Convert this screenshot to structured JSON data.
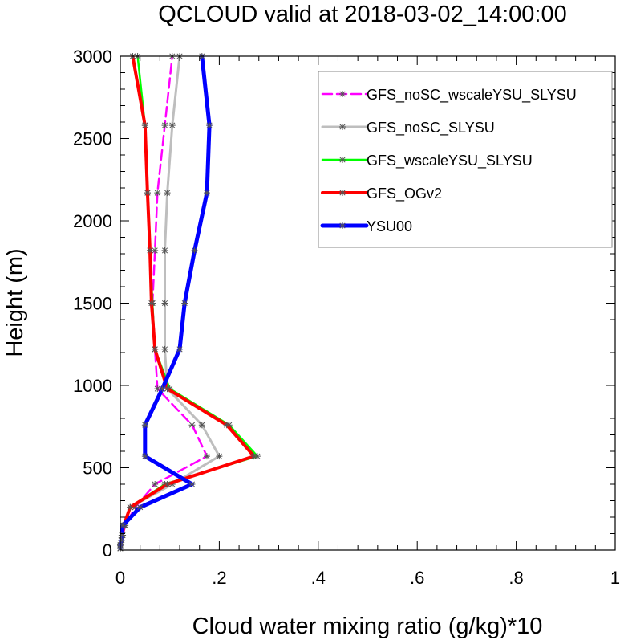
{
  "chart_data": {
    "type": "line",
    "title": "QCLOUD valid at 2018-03-02_14:00:00",
    "xlabel": "Cloud water mixing ratio (g/kg)*10",
    "ylabel": "Height (m)",
    "xlim": [
      0,
      1
    ],
    "ylim": [
      0,
      3000
    ],
    "x_ticks": [
      0,
      0.2,
      0.4,
      0.6,
      0.8,
      1
    ],
    "x_tick_labels": [
      "0",
      ".2",
      ".4",
      ".6",
      ".8",
      "1"
    ],
    "y_ticks": [
      0,
      500,
      1000,
      1500,
      2000,
      2500,
      3000
    ],
    "y_tick_labels": [
      "0",
      "500",
      "1000",
      "1500",
      "2000",
      "2500",
      "3000"
    ],
    "legend_position": "top-right",
    "heights": [
      10,
      30,
      60,
      90,
      150,
      260,
      400,
      570,
      760,
      980,
      1220,
      1500,
      1820,
      2170,
      2580,
      3000
    ],
    "series": [
      {
        "name": "GFS_noSC_wscaleYSU_SLYSU",
        "color": "#ff00ff",
        "dash": "dashed",
        "width": 2.5,
        "x": [
          0.0,
          0.0,
          0.003,
          0.005,
          0.01,
          0.03,
          0.07,
          0.175,
          0.145,
          0.075,
          0.07,
          0.065,
          0.07,
          0.075,
          0.09,
          0.105
        ]
      },
      {
        "name": "GFS_noSC_SLYSU",
        "color": "#bebebe",
        "dash": "solid",
        "width": 3,
        "x": [
          0.0,
          0.0,
          0.002,
          0.004,
          0.008,
          0.02,
          0.105,
          0.2,
          0.165,
          0.095,
          0.09,
          0.09,
          0.09,
          0.095,
          0.105,
          0.12
        ]
      },
      {
        "name": "GFS_wscaleYSU_SLYSU",
        "color": "#00ff00",
        "dash": "solid",
        "width": 2.5,
        "x": [
          0.0,
          0.0,
          0.002,
          0.004,
          0.007,
          0.02,
          0.09,
          0.277,
          0.22,
          0.1,
          0.07,
          0.065,
          0.06,
          0.055,
          0.05,
          0.035
        ]
      },
      {
        "name": "GFS_OGv2",
        "color": "#ff0000",
        "dash": "solid",
        "width": 4,
        "x": [
          0.0,
          0.0,
          0.002,
          0.004,
          0.007,
          0.02,
          0.095,
          0.27,
          0.215,
          0.095,
          0.07,
          0.063,
          0.06,
          0.055,
          0.05,
          0.025
        ]
      },
      {
        "name": "YSU00",
        "color": "#0000ff",
        "dash": "solid",
        "width": 5,
        "x": [
          0.0,
          0.0,
          0.002,
          0.003,
          0.005,
          0.04,
          0.145,
          0.05,
          0.05,
          0.085,
          0.12,
          0.13,
          0.15,
          0.175,
          0.18,
          0.165
        ]
      }
    ]
  }
}
